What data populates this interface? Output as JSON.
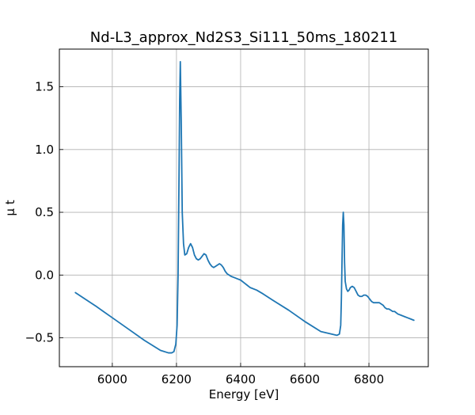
{
  "chart_data": {
    "type": "line",
    "title": "Nd-L3_approx_Nd2S3_Si111_50ms_180211",
    "xlabel": "Energy [eV]",
    "ylabel": "μ t",
    "xlim": [
      5835,
      6985
    ],
    "ylim": [
      -0.73,
      1.8
    ],
    "xticks": [
      6000,
      6200,
      6400,
      6600,
      6800
    ],
    "xtick_labels": [
      "6000",
      "6200",
      "6400",
      "6600",
      "6800"
    ],
    "yticks": [
      -0.5,
      0.0,
      0.5,
      1.0,
      1.5
    ],
    "ytick_labels": [
      "−0.5",
      "0.0",
      "0.5",
      "1.0",
      "1.5"
    ],
    "grid": true,
    "legend": "none",
    "series_color": "#1f77b4",
    "series": [
      {
        "x": [
          5885,
          5950,
          6000,
          6050,
          6100,
          6150,
          6175,
          6185,
          6192,
          6198,
          6202,
          6205,
          6208,
          6210,
          6212,
          6215,
          6218,
          6222,
          6226,
          6232,
          6238,
          6244,
          6250,
          6256,
          6262,
          6268,
          6274,
          6280,
          6286,
          6292,
          6298,
          6304,
          6310,
          6316,
          6322,
          6328,
          6334,
          6340,
          6346,
          6352,
          6358,
          6364,
          6370,
          6380,
          6390,
          6400,
          6410,
          6420,
          6430,
          6450,
          6470,
          6500,
          6550,
          6600,
          6650,
          6700,
          6708,
          6712,
          6714,
          6716,
          6718,
          6720,
          6722,
          6724,
          6726,
          6730,
          6734,
          6738,
          6742,
          6748,
          6754,
          6760,
          6766,
          6772,
          6778,
          6784,
          6790,
          6796,
          6802,
          6808,
          6814,
          6820,
          6826,
          6832,
          6838,
          6844,
          6850,
          6856,
          6862,
          6868,
          6874,
          6880,
          6890,
          6900,
          6910,
          6920,
          6930,
          6940
        ],
        "y": [
          -0.14,
          -0.25,
          -0.34,
          -0.43,
          -0.52,
          -0.6,
          -0.62,
          -0.62,
          -0.61,
          -0.55,
          -0.4,
          0.0,
          0.8,
          1.4,
          1.7,
          1.2,
          0.5,
          0.25,
          0.16,
          0.17,
          0.22,
          0.25,
          0.22,
          0.16,
          0.13,
          0.12,
          0.13,
          0.15,
          0.17,
          0.16,
          0.12,
          0.09,
          0.07,
          0.06,
          0.07,
          0.08,
          0.09,
          0.08,
          0.06,
          0.03,
          0.01,
          0.0,
          -0.01,
          -0.02,
          -0.03,
          -0.04,
          -0.06,
          -0.08,
          -0.1,
          -0.12,
          -0.15,
          -0.2,
          -0.28,
          -0.37,
          -0.45,
          -0.48,
          -0.47,
          -0.4,
          -0.2,
          0.1,
          0.4,
          0.5,
          0.4,
          0.1,
          -0.05,
          -0.11,
          -0.13,
          -0.12,
          -0.1,
          -0.09,
          -0.1,
          -0.13,
          -0.16,
          -0.17,
          -0.17,
          -0.16,
          -0.16,
          -0.17,
          -0.19,
          -0.21,
          -0.22,
          -0.22,
          -0.22,
          -0.22,
          -0.23,
          -0.24,
          -0.26,
          -0.27,
          -0.27,
          -0.28,
          -0.29,
          -0.29,
          -0.31,
          -0.32,
          -0.33,
          -0.34,
          -0.35,
          -0.36
        ]
      }
    ]
  }
}
